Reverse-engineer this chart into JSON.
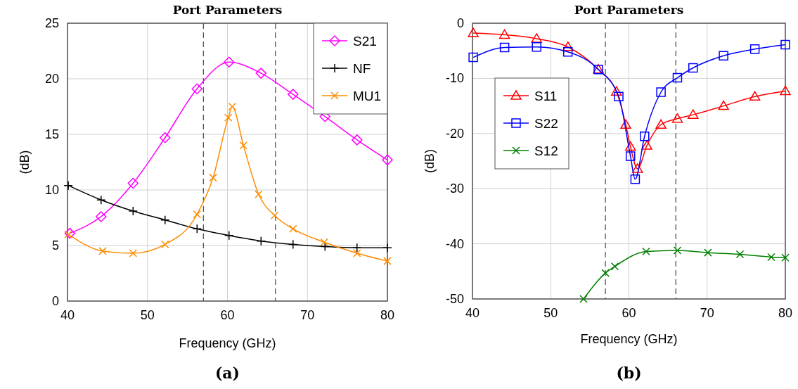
{
  "chart_data": [
    {
      "type": "line",
      "title": "Port Parameters",
      "xlabel": "Frequency (GHz)",
      "ylabel": "(dB)",
      "annotations": [
        "(a)"
      ],
      "xlim": [
        40,
        80
      ],
      "xticks": [
        40,
        50,
        60,
        70,
        80
      ],
      "ylim": [
        0,
        25
      ],
      "yticks": [
        0,
        5,
        10,
        15,
        20,
        25
      ],
      "grid": true,
      "legend": "top right",
      "ref_lines": [
        {
          "axis": "x",
          "value": 57,
          "color": "#555555",
          "line_style": "dashed"
        },
        {
          "axis": "x",
          "value": 66,
          "color": "#555555",
          "line_style": "dashed"
        }
      ],
      "series": [
        {
          "name": "S21",
          "color": "#ff00ff",
          "marker": "diamond",
          "x": [
            40.3,
            44.2,
            48.2,
            52.2,
            56.2,
            60.2,
            64.2,
            68.2,
            72.2,
            76.2,
            80
          ],
          "values": [
            6.1,
            7.6,
            10.6,
            14.7,
            19.1,
            21.5,
            20.5,
            18.6,
            16.6,
            14.5,
            12.7
          ]
        },
        {
          "name": "NF",
          "color": "#000000",
          "marker": "plus",
          "x": [
            40.1,
            44.2,
            48.2,
            52.2,
            56.2,
            60.2,
            64.2,
            68.2,
            72.2,
            76.2,
            80
          ],
          "values": [
            10.4,
            9.1,
            8.1,
            7.3,
            6.5,
            5.9,
            5.4,
            5.1,
            4.9,
            4.8,
            4.8
          ]
        },
        {
          "name": "MU1",
          "color": "#ff8c00",
          "marker": "cross",
          "x": [
            40.1,
            44.4,
            48.2,
            52.2,
            56.2,
            58.2,
            60.1,
            60.6,
            62.0,
            63.9,
            65.9,
            68.2,
            72.1,
            76.2,
            80
          ],
          "values": [
            6.0,
            4.5,
            4.3,
            5.1,
            7.8,
            11.1,
            16.5,
            17.5,
            14.0,
            9.6,
            7.7,
            6.5,
            5.3,
            4.3,
            3.6
          ]
        }
      ]
    },
    {
      "type": "line",
      "title": "Port Parameters",
      "xlabel": "Frequency (GHz)",
      "ylabel": "(dB)",
      "annotations": [
        "(b)"
      ],
      "xlim": [
        40,
        80
      ],
      "xticks": [
        40,
        50,
        60,
        70,
        80
      ],
      "ylim": [
        -50,
        0
      ],
      "yticks": [
        -50,
        -40,
        -30,
        -20,
        -10,
        0
      ],
      "grid": true,
      "legend": "top left",
      "ref_lines": [
        {
          "axis": "x",
          "value": 57,
          "color": "#555555",
          "line_style": "dashed"
        },
        {
          "axis": "x",
          "value": 66,
          "color": "#555555",
          "line_style": "dashed"
        }
      ],
      "series": [
        {
          "name": "S11",
          "color": "#ff0000",
          "marker": "triangle",
          "x": [
            40.1,
            44.1,
            48.2,
            52.2,
            56.1,
            58.4,
            59.6,
            60.2,
            61.1,
            62.3,
            64.1,
            66.2,
            68.2,
            72.1,
            76.1,
            80
          ],
          "values": [
            -1.8,
            -2.1,
            -2.8,
            -4.3,
            -8.4,
            -12.4,
            -18.4,
            -22.4,
            -26.4,
            -22.2,
            -18.4,
            -17.3,
            -16.6,
            -15.0,
            -13.3,
            -12.3
          ]
        },
        {
          "name": "S22",
          "color": "#0000ff",
          "marker": "square",
          "x": [
            40.1,
            44.1,
            48.2,
            52.2,
            56.1,
            58.7,
            60.2,
            60.8,
            62.0,
            64.1,
            66.2,
            68.2,
            72.1,
            76.1,
            80
          ],
          "values": [
            -6.2,
            -4.4,
            -4.3,
            -5.2,
            -8.4,
            -13.3,
            -24.1,
            -28.3,
            -20.5,
            -12.5,
            -9.9,
            -8.1,
            -5.9,
            -4.7,
            -3.9
          ]
        },
        {
          "name": "S12",
          "color": "#008000",
          "marker": "cross",
          "x": [
            54.2,
            57,
            58.2,
            62.2,
            66.2,
            70.1,
            74.2,
            78.2,
            80
          ],
          "values": [
            -50,
            -45.3,
            -44.1,
            -41.4,
            -41.2,
            -41.6,
            -41.9,
            -42.4,
            -42.5
          ]
        }
      ]
    }
  ]
}
